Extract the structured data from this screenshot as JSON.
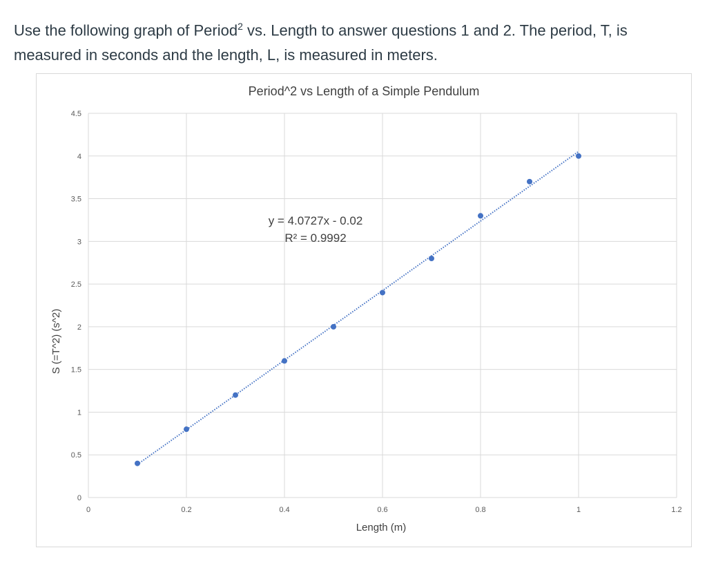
{
  "question": {
    "line1_prefix": "Use the following graph of Period",
    "superscript": "2",
    "line1_suffix": " vs. Length to answer questions 1 and 2. The period, T, is",
    "line2": "measured in seconds and the length, L, is measured in meters."
  },
  "chart_data": {
    "type": "scatter",
    "title": "Period^2 vs Length of a Simple Pendulum",
    "xlabel": "Length (m)",
    "ylabel": "S (=T^2) (s^2)",
    "xlim": [
      0,
      1.2
    ],
    "ylim": [
      0,
      4.5
    ],
    "xticks": [
      "0",
      "0.2",
      "0.4",
      "0.6",
      "0.8",
      "1",
      "1.2"
    ],
    "yticks": [
      "0",
      "0.5",
      "1",
      "1.5",
      "2",
      "2.5",
      "3",
      "3.5",
      "4",
      "4.5"
    ],
    "grid": true,
    "series": [
      {
        "x": [
          0.1,
          0.2,
          0.3,
          0.4,
          0.5,
          0.6,
          0.7,
          0.8,
          0.9,
          1.0
        ],
        "y": [
          0.4,
          0.8,
          1.2,
          1.6,
          2.0,
          2.4,
          2.8,
          3.3,
          3.7,
          4.0
        ],
        "color": "#4472c4"
      }
    ],
    "trendline": {
      "type": "linear",
      "slope": 4.0727,
      "intercept": -0.02,
      "style": "dotted",
      "color": "#4472c4",
      "equation": "y = 4.0727x - 0.02",
      "r2_label": "R² = 0.9992"
    }
  }
}
